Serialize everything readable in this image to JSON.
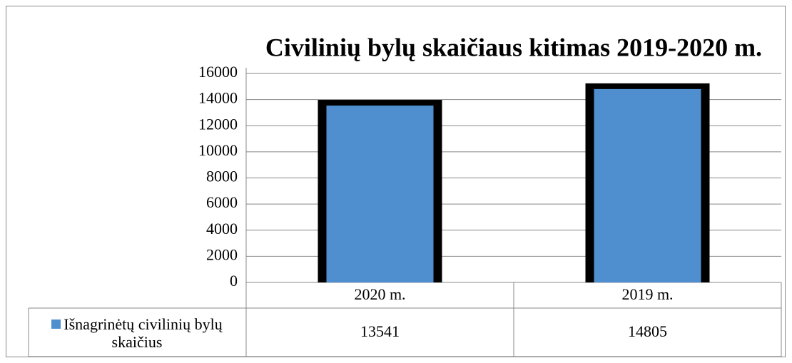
{
  "chart_data": {
    "type": "bar",
    "title": "Civilinių bylų skaičiaus kitimas 2019-2020 m.",
    "categories": [
      "2020 m.",
      "2019 m."
    ],
    "series": [
      {
        "name": "Išnagrinėtų civilinių bylų skaičius",
        "color": "#4f8fd0",
        "values": [
          13541,
          14805
        ]
      }
    ],
    "ylim": [
      0,
      16000
    ],
    "yticks": [
      0,
      2000,
      4000,
      6000,
      8000,
      10000,
      12000,
      14000,
      16000
    ],
    "grid": true
  }
}
